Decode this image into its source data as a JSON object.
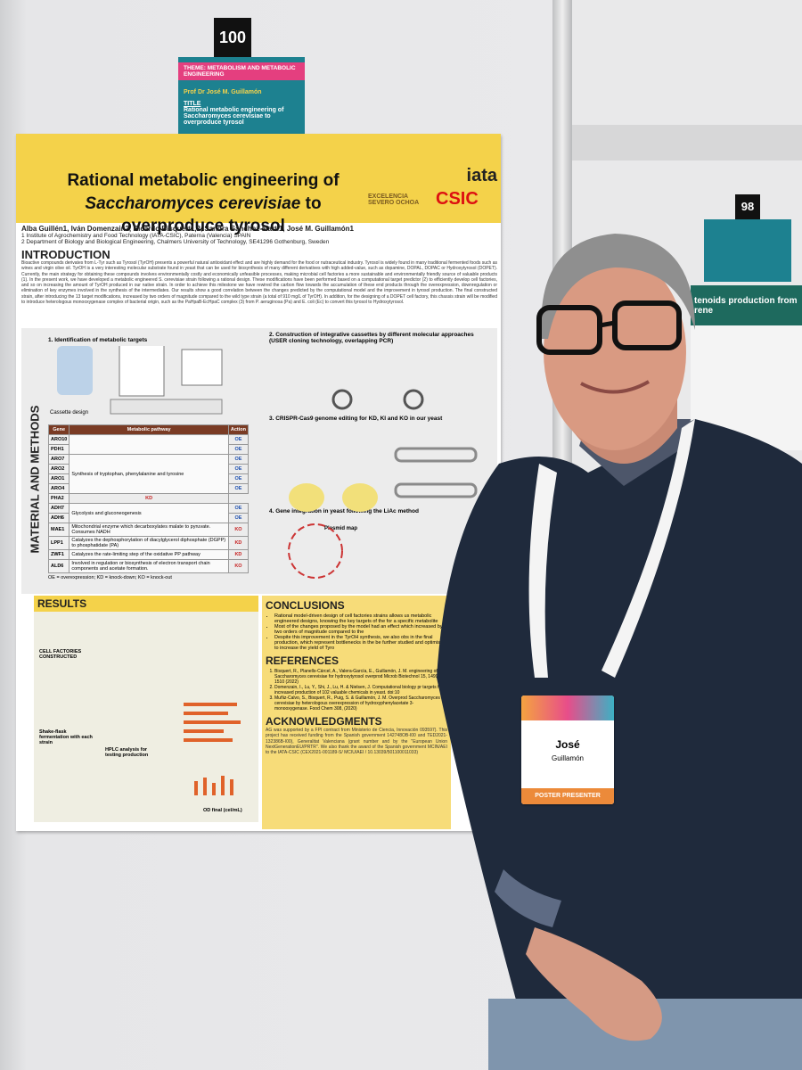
{
  "poster_number": "100",
  "theme_card": {
    "theme": "THEME: METABOLISM AND METABOLIC ENGINEERING",
    "presenter": "Prof Dr José M. Guillamón",
    "title_label": "TITLE",
    "title": "Rational metabolic engineering of Saccharomyces cerevisiae to overproduce tyrosol"
  },
  "poster": {
    "title_parts": [
      "Rational metabolic engineering of ",
      "Saccharomyces cerevisiae",
      " to overproduce tyrosol"
    ],
    "authors": "Alba Guillén1, Iván Domenzain2, Ricardo Bisquert1,2, Sandra Sánchez-Martí1, José M. Guillamón1",
    "affiliations": [
      "1 Institute of Agrochemistry and Food Technology (IATA-CSIC), Paterna (Valencia) SPAIN",
      "2 Department of Biology and Biological Engineering, Chalmers University of Technology, SE41296 Gothenburg, Sweden"
    ],
    "logos": [
      "iata",
      "EXCELENCIA SEVERO OCHOA",
      "CSIC"
    ],
    "intro_heading": "INTRODUCTION",
    "intro_text": "Bioactive compounds derivates from L-Tyr such as Tyrosol (TyrOH) presents a powerful natural antioxidant effect and are highly demand for the food or nutraceutical industry. Tyrosol is widely found in many traditional fermented foods such as wines and virgin olive oil. TyrOH is a very interesting molecular substrate found in yeast that can be used for biosynthesis of many different derivatives with high added-value, such as dopamine, DOPAL, DOPAC or Hydroxytyrosol (DOPET). Currently, the main strategy for obtaining these compounds involves environmentally costly and economically unfeasible processes, making microbial cell factories a more sustainable and environmentally friendly source of valuable products (1). In the present work, we have developed a metabolic engineered S. cerevisiae strain following a rational design. These modifications have been performed based on a computational target predictor (2) to efficiently develop cell factories, and so on increasing the amount of TyrOH produced in our native strain. In order to achieve this milestone we have rewired the carbon flow towards the accumulation of these end products through the overexpression, downregulation or elimination of key enzymes involved in the synthesis of the intermediates. Our results show a good correlation between the changes predicted by the computational model and the improvement in tyrosol production. The final constructed strain, after introducing the 13 target modifications, increased by two orders of magnitude compared to the wild type strain (a total of 910 mg/L of TyrOH). In addition, for the designing of a DOPET cell factory, this chassis strain will be modified to introduce heterologous monooxygenase complex of bacterial origin, such as the PaHpaB-EcHpaC complex (3) from P. aeruginosa (Pa) and E. coli (Ec) to convert this tyrosol to Hydroxytyrosol.",
    "methods_heading": "MATERIAL AND METHODS",
    "method_steps": [
      "1. Identification of metabolic targets",
      "2. Construction of integrative cassettes by different molecular approaches (USER cloning technology, overlapping PCR)",
      "3. CRISPR-Cas9 genome editing for KD, KI and KO in our yeast",
      "4. Gene integration in yeast following the LiAc method"
    ],
    "cassette_label": "Cassette design",
    "plasmid_label": "Plasmid map",
    "gene_table": {
      "header": [
        "Gene",
        "Metabolic pathway",
        "Action"
      ],
      "genes": [
        "ARO10",
        "PDH1",
        "ARO7",
        "ARO2",
        "ARO1",
        "ARO4",
        "PHA2",
        "ADH7",
        "ADH6",
        "MAE1",
        "LPP1",
        "ZWF1",
        "ALD6"
      ],
      "actions": [
        "OE",
        "OE",
        "OE",
        "OE",
        "OE",
        "OE",
        "KD",
        "OE",
        "OE",
        "KO",
        "KD",
        "KD",
        "KO"
      ],
      "pathways": [
        "Synthesis of tryptophan, phenylalanine and tyrosine",
        "Glycolysis and gluconeogenesis",
        "Mitochondrial enzyme which decarboxylates malate to pyruvate. Consumes NADH",
        "Catalyzes the dephosphorylation of diacylglycerol diphosphate (DGPP) to phosphatidate (PA)",
        "Catalyzes the rate-limiting step of the oxidative PP pathway",
        "Involved in regulation or biosynthesis of electron transport chain components and acetate formation."
      ],
      "legend": "OE = overexpression; KD = knock-down; KO = knock-out"
    },
    "results_heading": "RESULTS",
    "results_labels": [
      "CELL FACTORIES CONSTRUCTED",
      "Shake-flask fermentation with each strain",
      "HPLC analysis for testing production",
      "OD final (cel/mL)"
    ],
    "conclusions_heading": "CONCLUSIONS",
    "conclusions": [
      "Rational model-driven design of cell factories strains allows us metabolic engineered designs, knowing the key targets of the for a specific metabolite",
      "Most of the changes proposed by the model had an effect which increased by two orders of magnitude compared to the",
      "Despite this improvement in the TyrOH synthesis, we also obs in the final production, which represent bottlenecks in the be further studied and optimised to increase the yield of Tyro"
    ],
    "references_heading": "REFERENCES",
    "references": [
      "Bisquert, R., Planells-Cárcel, A., Valera-García, E., Guillamón, J. M. engineering of Saccharomyces cerevisiae for hydroxytyrosol overprod Microb Biotechnol 15, 1499–1510 (2022)",
      "Domenzain, I., Lu, Y., Shi, J., Lu, H. & Nielsen, J. Computational biology pr targets for increased production of 102 valuable chemicals in yeast. doi:10",
      "Muñiz-Calvo, S., Bisquert, R., Puig, S. & Guillamón, J. M. Overprod Saccharomyces cerevisiae by heterologous overexpression of hydroxyphenylacetate 3-monooxygenase. Food Chem 308, (2020)"
    ],
    "ack_heading": "ACKNOWLEDGMENTS",
    "ack_text": "AG was supported by a FPI contract from Ministerio de Ciencia, Innovación 093597). This project has received funding from the Spanish government 142748OB-I00 and TED2021-132386B-I00), Generalitat Valenciana (grant number and by the \"European Union NextGenerationEU/PRTR\". We also thank the award of the Spanish government MCIN/AEI to the IATA-CSIC (CEX2021-001189-S/ MCIU/AEI / 10.13039/501100011033)"
  },
  "badge": {
    "first_name": "José",
    "last_name": "Guillamón",
    "role": "POSTER PRESENTER"
  },
  "neighbor_poster": {
    "number": "98",
    "title_fragment": "tenoids production from rene"
  }
}
